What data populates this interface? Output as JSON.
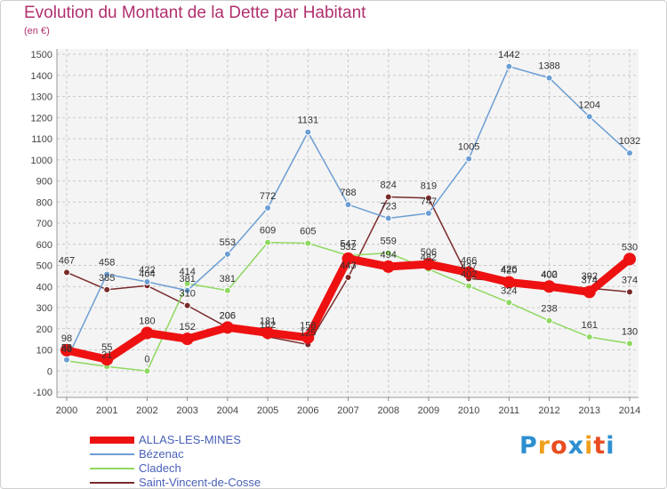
{
  "title": "Evolution du Montant de la Dette par Habitant",
  "unit": "(en €)",
  "logo": {
    "letters": [
      "P",
      "r",
      "o",
      "x",
      "i",
      "t",
      "i"
    ],
    "colors": [
      "#2e8fd0",
      "#f0a020",
      "#e84c20",
      "#2e8fd0",
      "#f0a020",
      "#e84c20",
      "#2e8fd0"
    ]
  },
  "chart_data": {
    "type": "line",
    "x": [
      "2000",
      "2001",
      "2002",
      "2003",
      "2004",
      "2005",
      "2006",
      "2007",
      "2008",
      "2009",
      "2010",
      "2011",
      "2012",
      "2013",
      "2014"
    ],
    "ylim": [
      -100,
      1500
    ],
    "yticks": [
      "-100",
      "0",
      "100",
      "200",
      "300",
      "400",
      "500",
      "600",
      "700",
      "800",
      "900",
      "1000",
      "1100",
      "1200",
      "1300",
      "1400",
      "1500"
    ],
    "grid": true,
    "legend_position": "bottom-left",
    "series": [
      {
        "name": "Saint-Vincent-de-Cosse",
        "color": "#7a2a2a",
        "values": [
          467,
          385,
          404,
          310,
          206,
          162,
          125,
          443,
          824,
          819,
          437,
          426,
          402,
          392,
          374
        ],
        "labels": [
          "467",
          "385",
          "404",
          "310",
          "206",
          "162",
          "125",
          "443",
          "824",
          "819",
          "437",
          "426",
          "402",
          "392",
          "374"
        ]
      },
      {
        "name": "Cladech",
        "color": "#8fd860",
        "values": [
          48,
          21,
          0,
          414,
          381,
          609,
          605,
          547,
          559,
          482,
          402,
          324,
          238,
          161,
          130
        ],
        "labels": [
          "48",
          "21",
          "0",
          "414",
          "381",
          "609",
          "605",
          "547",
          "559",
          "482",
          "402",
          "324",
          "238",
          "161",
          "130"
        ]
      },
      {
        "name": "Bézenac",
        "color": "#6c9ed4",
        "values": [
          53,
          458,
          422,
          381,
          553,
          772,
          1131,
          788,
          723,
          747,
          1005,
          1442,
          1388,
          1204,
          1032
        ],
        "labels": [
          "53",
          "458",
          "422",
          "381",
          "553",
          "772",
          "1131",
          "788",
          "723",
          "747",
          "1005",
          "1442",
          "1388",
          "1204",
          "1032"
        ]
      },
      {
        "name": "ALLAS-LES-MINES",
        "color": "#ee1111",
        "values": [
          98,
          55,
          180,
          152,
          206,
          181,
          158,
          532,
          494,
          506,
          466,
          420,
          400,
          374,
          530
        ],
        "labels": [
          "98",
          "55",
          "180",
          "152",
          "206",
          "181",
          "158",
          "532",
          "494",
          "506",
          "466",
          "420",
          "400",
          "374",
          "530"
        ]
      }
    ],
    "legend": [
      "ALLAS-LES-MINES",
      "Bézenac",
      "Cladech",
      "Saint-Vincent-de-Cosse"
    ]
  }
}
